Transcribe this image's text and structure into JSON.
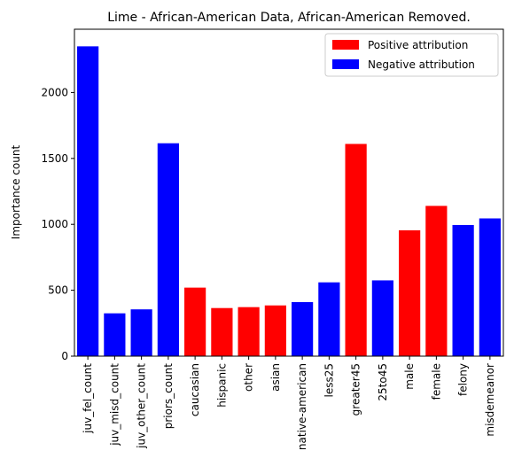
{
  "chart_data": {
    "type": "bar",
    "title": "Lime - African-American Data, African-American Removed.",
    "xlabel": "",
    "ylabel": "Importance count",
    "ylim": [
      0,
      2480
    ],
    "yticks": [
      0,
      500,
      1000,
      1500,
      2000
    ],
    "grid": false,
    "legend_position": "top-right",
    "colors": {
      "positive": "#ff0000",
      "negative": "#0000ff"
    },
    "legend": [
      {
        "key": "positive",
        "label": "Positive attribution"
      },
      {
        "key": "negative",
        "label": "Negative attribution"
      }
    ],
    "categories": [
      "juv_fel_count",
      "juv_misd_count",
      "juv_other_count",
      "priors_count",
      "caucasian",
      "hispanic",
      "other",
      "asian",
      "native-american",
      "less25",
      "greater45",
      "25to45",
      "male",
      "female",
      "felony",
      "misdemeanor"
    ],
    "values": [
      2350,
      325,
      355,
      1615,
      520,
      365,
      372,
      385,
      410,
      560,
      1610,
      575,
      955,
      1140,
      995,
      1045
    ],
    "attribution": [
      "negative",
      "negative",
      "negative",
      "negative",
      "positive",
      "positive",
      "positive",
      "positive",
      "negative",
      "negative",
      "positive",
      "negative",
      "positive",
      "positive",
      "negative",
      "negative"
    ]
  }
}
